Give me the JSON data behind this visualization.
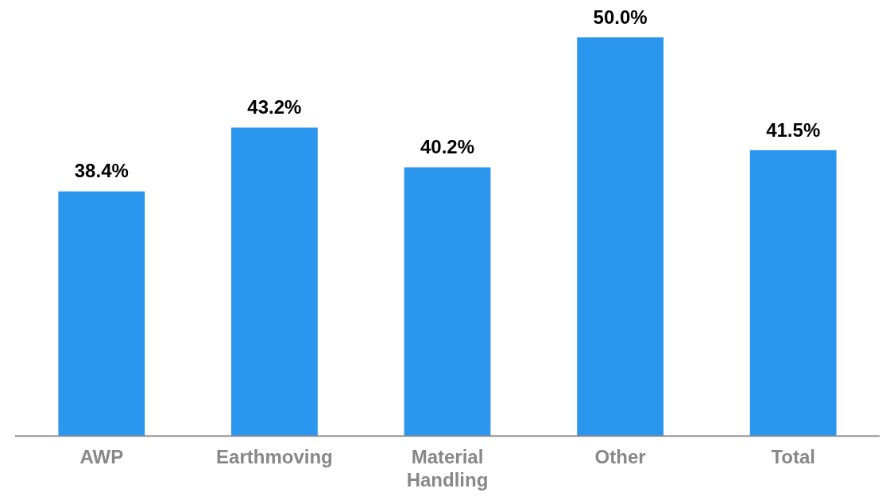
{
  "chart_data": {
    "type": "bar",
    "categories": [
      "AWP",
      "Earthmoving",
      "Material Handling",
      "Other",
      "Total"
    ],
    "values": [
      38.4,
      43.2,
      40.2,
      50.0,
      41.5
    ],
    "value_labels": [
      "38.4%",
      "43.2%",
      "40.2%",
      "50.0%",
      "41.5%"
    ],
    "color": "#2b96ee",
    "grid": false,
    "legend": false
  }
}
